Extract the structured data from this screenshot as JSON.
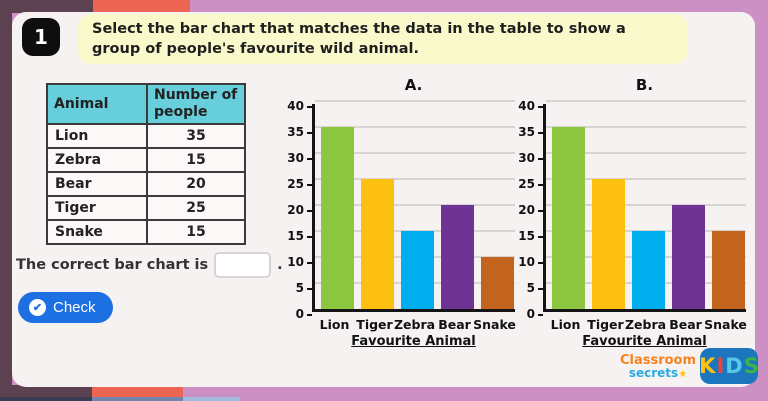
{
  "question": {
    "number": "1",
    "text": "Select the bar chart that matches the data in the table to show a group of people's favourite wild animal."
  },
  "table": {
    "headers": [
      "Animal",
      "Number of people"
    ],
    "rows": [
      [
        "Lion",
        "35"
      ],
      [
        "Zebra",
        "15"
      ],
      [
        "Bear",
        "20"
      ],
      [
        "Tiger",
        "25"
      ],
      [
        "Snake",
        "15"
      ]
    ]
  },
  "answer": {
    "prompt": "The correct bar chart is",
    "suffix": ".",
    "input_value": ""
  },
  "check_button": {
    "label": "Check",
    "icon": "✔"
  },
  "chart_data": [
    {
      "type": "bar",
      "title": "A.",
      "categories": [
        "Lion",
        "Tiger",
        "Zebra",
        "Bear",
        "Snake"
      ],
      "values": [
        35,
        25,
        15,
        20,
        10
      ],
      "bar_colors": [
        "#8DC63F",
        "#FDC010",
        "#00AEEF",
        "#6F3393",
        "#C2641E"
      ],
      "ylim": [
        0,
        40
      ],
      "ytick_step": 5,
      "xlabel": "Favourite Animal",
      "ylabel": "",
      "grid": true,
      "legend": false
    },
    {
      "type": "bar",
      "title": "B.",
      "categories": [
        "Lion",
        "Tiger",
        "Zebra",
        "Bear",
        "Snake"
      ],
      "values": [
        35,
        25,
        15,
        20,
        15
      ],
      "bar_colors": [
        "#8DC63F",
        "#FDC010",
        "#00AEEF",
        "#6F3393",
        "#C2641E"
      ],
      "ylim": [
        0,
        40
      ],
      "ytick_step": 5,
      "xlabel": "Favourite Animal",
      "ylabel": "",
      "grid": true,
      "legend": false
    }
  ],
  "branding": {
    "line1": "Classroom",
    "line2": "secrets",
    "star": "★",
    "kids_letters": [
      "K",
      "I",
      "D",
      "S"
    ],
    "kids_letter_colors": [
      "#FFC20E",
      "#EF4136",
      "#56C9E9",
      "#3BB54A"
    ],
    "kids_bg": "#1B76BD"
  },
  "colors": {
    "page_bg": "#CD90C5",
    "card_bg": "#F6F2F1",
    "frame_purple": "#5C4151",
    "frame_orange": "#EC6452",
    "banner_bg": "#FAF9CC",
    "table_header_bg": "#67CEDC",
    "button_blue": "#1D70E2",
    "badge_bg": "#0E0E0E"
  }
}
